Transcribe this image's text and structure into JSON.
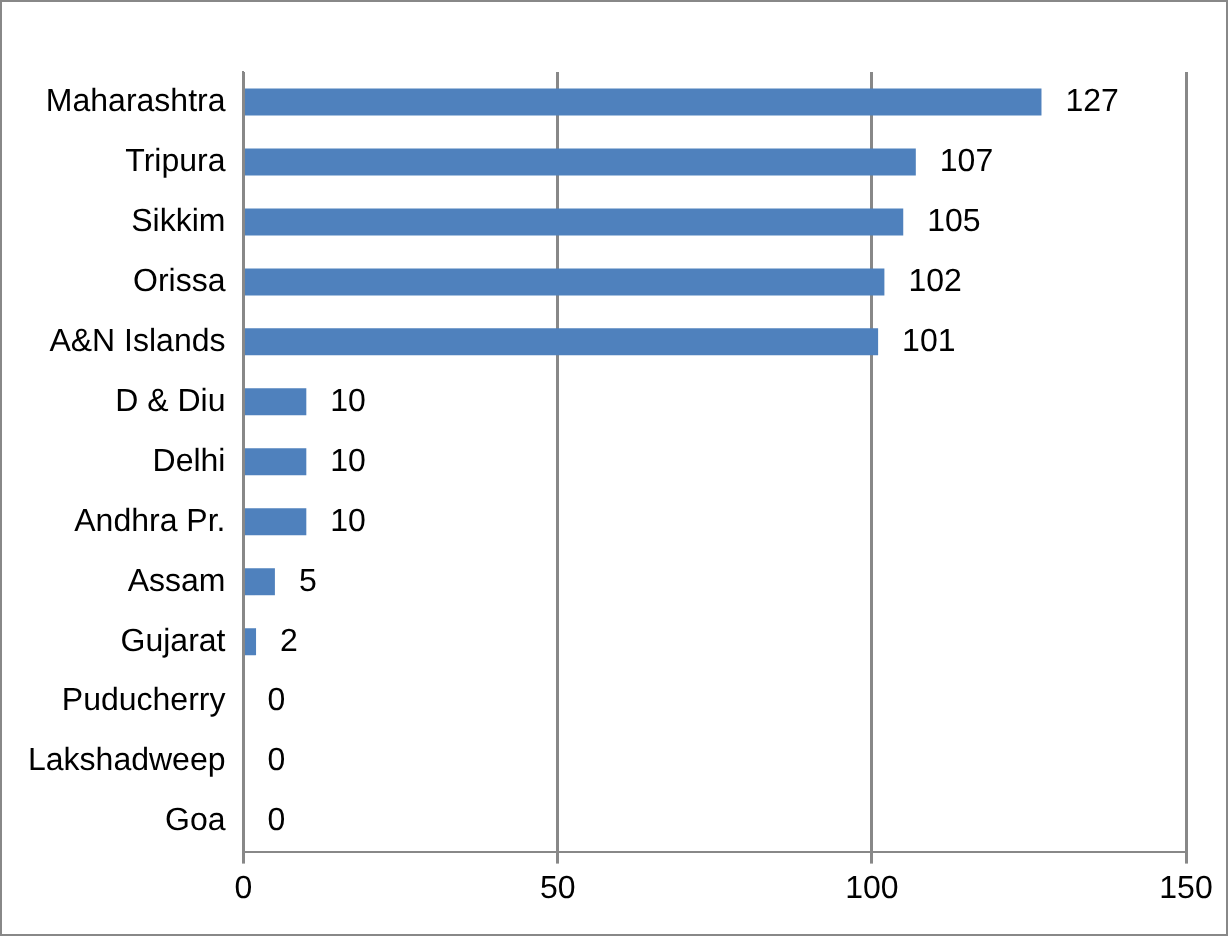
{
  "chart_data": {
    "type": "bar",
    "orientation": "horizontal",
    "categories": [
      "Maharashtra",
      "Tripura",
      "Sikkim",
      "Orissa",
      "A&N Islands",
      "D & Diu",
      "Delhi",
      "Andhra Pr.",
      "Assam",
      "Gujarat",
      "Puducherry",
      "Lakshadweep",
      "Goa"
    ],
    "values": [
      127,
      107,
      105,
      102,
      101,
      10,
      10,
      10,
      5,
      2,
      0,
      0,
      0
    ],
    "color": "#4f81bd",
    "xlim": [
      0,
      150
    ],
    "xticks": [
      0,
      50,
      100,
      150
    ],
    "grid": "x",
    "data_labels": true,
    "legend": false
  }
}
